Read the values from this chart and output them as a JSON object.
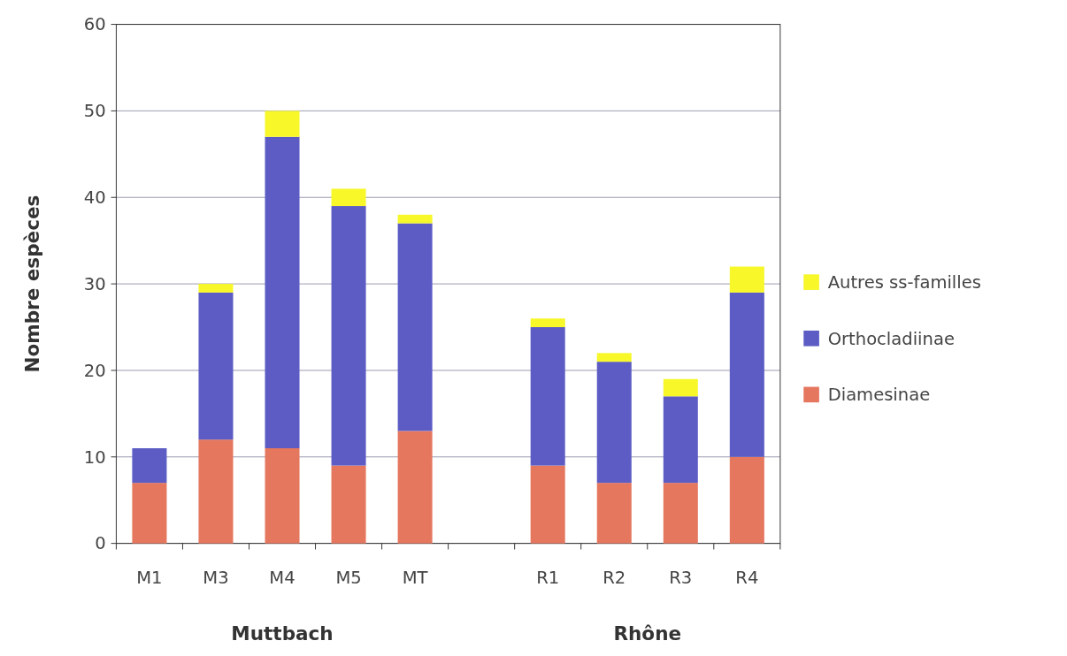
{
  "chart_data": {
    "type": "bar",
    "stacked": true,
    "ylabel": "Nombre espèces",
    "categories": [
      "M1",
      "M3",
      "M4",
      "M5",
      "MT",
      null,
      "R1",
      "R2",
      "R3",
      "R4"
    ],
    "series": [
      {
        "name": "Diamesinae",
        "color": "#e5775f",
        "values": [
          7,
          12,
          11,
          9,
          13,
          null,
          9,
          7,
          7,
          10
        ]
      },
      {
        "name": "Orthocladiinae",
        "color": "#5c5cc4",
        "values": [
          4,
          17,
          36,
          30,
          24,
          null,
          16,
          14,
          10,
          19
        ]
      },
      {
        "name": "Autres ss-familles",
        "color": "#f7f72a",
        "values": [
          0,
          1,
          3,
          2,
          1,
          null,
          1,
          1,
          2,
          3
        ]
      }
    ],
    "ylim": [
      0,
      60
    ],
    "yticks": [
      0,
      10,
      20,
      30,
      40,
      50,
      60
    ],
    "grid": "y",
    "legend": "right",
    "annotations": [
      "Muttbach",
      "Rhône"
    ]
  }
}
